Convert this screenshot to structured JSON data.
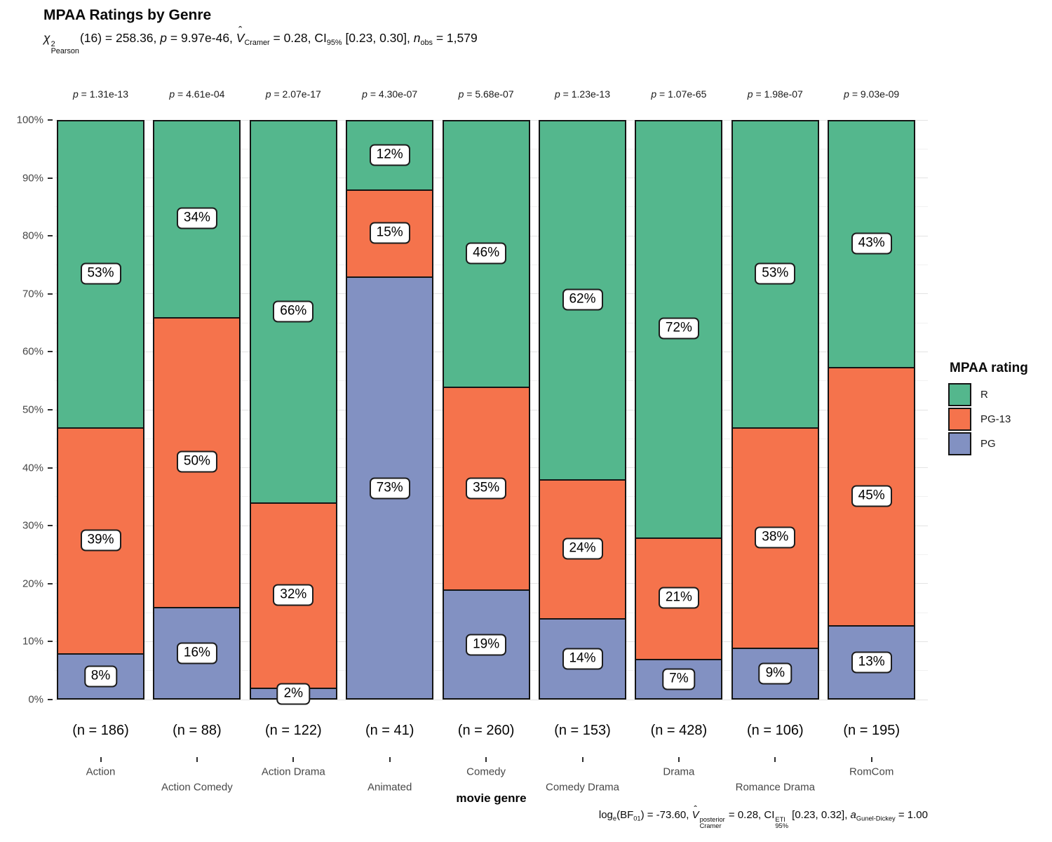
{
  "page": {
    "title": "MPAA Ratings by Genre"
  },
  "subtitle_segments": [
    {
      "t": "χ",
      "i": true
    },
    {
      "stack": {
        "sup": "2",
        "sub": "Pearson"
      }
    },
    {
      "t": "(16) = 258.36, "
    },
    {
      "t": "p",
      "i": true
    },
    {
      "t": " = 9.97e-46, "
    },
    {
      "t": "V",
      "i": true,
      "hat": "ˆ"
    },
    {
      "t": "Cramer",
      "sub": true
    },
    {
      "t": " = 0.28, CI"
    },
    {
      "t": "95%",
      "sub": true
    },
    {
      "t": " [0.23, 0.30], "
    },
    {
      "t": "n",
      "i": true
    },
    {
      "t": "obs",
      "sub": true
    },
    {
      "t": " = 1,579"
    }
  ],
  "caption_segments": [
    {
      "t": "log"
    },
    {
      "t": "e",
      "sub": true
    },
    {
      "t": "(BF"
    },
    {
      "t": "01",
      "sub": true
    },
    {
      "t": ") = -73.60, "
    },
    {
      "t": "V",
      "i": true,
      "hat": "ˆ"
    },
    {
      "stack": {
        "sup": "posterior",
        "sub": "Cramer"
      }
    },
    {
      "t": " = 0.28, CI"
    },
    {
      "stack": {
        "sup": "ETI",
        "sub": "95%"
      }
    },
    {
      "t": " [0.23, 0.32], "
    },
    {
      "t": "a",
      "i": true
    },
    {
      "t": "Gunel-Dickey",
      "sub": true
    },
    {
      "t": " = 1.00"
    }
  ],
  "x_axis": {
    "title": "movie genre"
  },
  "y_axis": {
    "tick_labels": [
      "0%",
      "10%",
      "20%",
      "30%",
      "40%",
      "50%",
      "60%",
      "70%",
      "80%",
      "90%",
      "100%"
    ]
  },
  "legend": {
    "title": "MPAA rating",
    "items": [
      {
        "label": "R",
        "color": "#54B78D"
      },
      {
        "label": "PG-13",
        "color": "#F5734C"
      },
      {
        "label": "PG",
        "color": "#8291C2"
      }
    ]
  },
  "p_row": {
    "symbol": "p",
    "joiner": " = "
  },
  "chart_data": {
    "type": "bar",
    "stacked": true,
    "units": "percent",
    "title": "MPAA Ratings by Genre",
    "xlabel": "movie genre",
    "ylabel": "",
    "ylim": [
      0,
      100
    ],
    "grid": true,
    "legend_position": "right",
    "categories": [
      "Action",
      "Action Comedy",
      "Action Drama",
      "Animated",
      "Comedy",
      "Comedy Drama",
      "Drama",
      "Romance Drama",
      "RomCom"
    ],
    "sample_sizes": [
      186,
      88,
      122,
      41,
      260,
      153,
      428,
      106,
      195
    ],
    "sample_size_labels": [
      "(n = 186)",
      "(n = 88)",
      "(n = 122)",
      "(n = 41)",
      "(n = 260)",
      "(n = 153)",
      "(n = 428)",
      "(n = 106)",
      "(n = 195)"
    ],
    "per_bar_p_values": [
      "1.31e-13",
      "4.61e-04",
      "2.07e-17",
      "4.30e-07",
      "5.68e-07",
      "1.23e-13",
      "1.07e-65",
      "1.98e-07",
      "9.03e-09"
    ],
    "series": [
      {
        "name": "PG",
        "color": "#8291C2",
        "values": [
          8,
          16,
          2,
          73,
          19,
          14,
          7,
          9,
          13
        ]
      },
      {
        "name": "PG-13",
        "color": "#F5734C",
        "values": [
          39,
          50,
          32,
          15,
          35,
          24,
          21,
          38,
          45
        ]
      },
      {
        "name": "R",
        "color": "#54B78D",
        "values": [
          53,
          34,
          66,
          12,
          46,
          62,
          72,
          53,
          43
        ]
      }
    ]
  }
}
